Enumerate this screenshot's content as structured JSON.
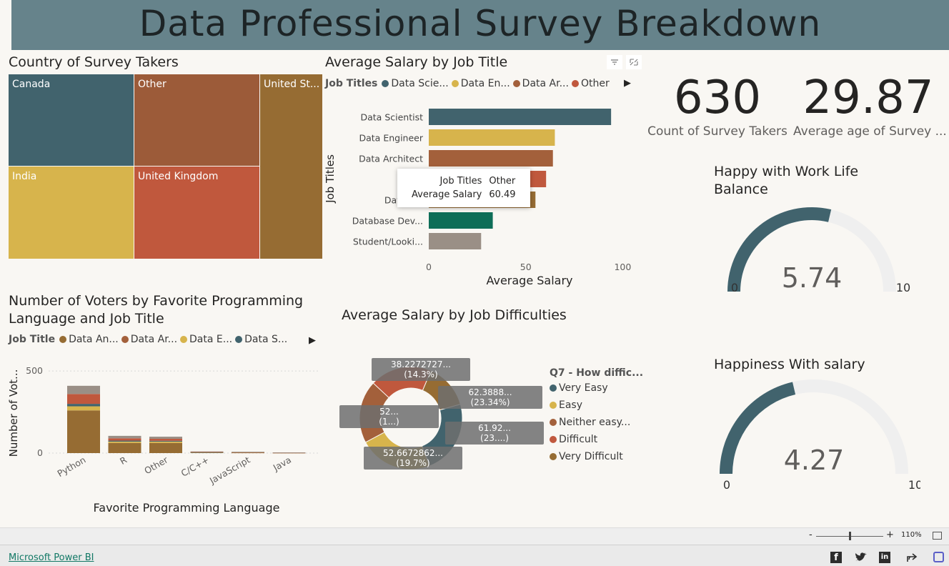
{
  "header": {
    "title": "Data Professional Survey Breakdown"
  },
  "treemap": {
    "title": "Country of Survey Takers",
    "cells": [
      {
        "label": "Canada",
        "color": "#41636d"
      },
      {
        "label": "Other",
        "color": "#9c5b39"
      },
      {
        "label": "United St...",
        "color": "#966c33"
      },
      {
        "label": "India",
        "color": "#d7b44c"
      },
      {
        "label": "United Kingdom",
        "color": "#c0583d"
      }
    ]
  },
  "salary_by_title": {
    "title": "Average Salary by Job Title",
    "legend_title": "Job Titles",
    "legend_items": [
      {
        "label": "Data Scie...",
        "color": "#41636d"
      },
      {
        "label": "Data En...",
        "color": "#d7b44c"
      },
      {
        "label": "Data Ar...",
        "color": "#a3603b"
      },
      {
        "label": "Other",
        "color": "#c0583d"
      }
    ],
    "y_axis_title": "Job Titles",
    "x_axis_title": "Average Salary",
    "tooltip": {
      "k1": "Job Titles",
      "v1": "Other",
      "k2": "Average Salary",
      "v2": "60.49"
    },
    "chart_data": {
      "type": "bar",
      "categories": [
        "Data Scientist",
        "Data Engineer",
        "Data Architect",
        "Other",
        "Data A...",
        "Database Dev...",
        "Student/Looki..."
      ],
      "values": [
        94,
        65,
        64,
        60.49,
        55,
        33,
        27
      ],
      "colors": [
        "#41636d",
        "#d7b44c",
        "#a3603b",
        "#c0583d",
        "#966c33",
        "#0e6e58",
        "#9a8f86"
      ],
      "xticks": [
        0,
        50,
        100
      ],
      "xlim": [
        0,
        105
      ]
    }
  },
  "lang_chart": {
    "title_line1": "Number of Voters by Favorite Programming",
    "title_line2": "Language and Job Title",
    "legend_title": "Job Title",
    "legend_items": [
      {
        "label": "Data An...",
        "color": "#966c33"
      },
      {
        "label": "Data Ar...",
        "color": "#a3603b"
      },
      {
        "label": "Data E...",
        "color": "#d7b44c"
      },
      {
        "label": "Data S...",
        "color": "#41636d"
      }
    ],
    "y_axis_title": "Number of Vot...",
    "x_axis_title": "Favorite Programming Language",
    "chart_data": {
      "type": "bar",
      "stacked": true,
      "categories": [
        "Python",
        "R",
        "Other",
        "C/C++",
        "JavaScript",
        "Java"
      ],
      "yticks": [
        0,
        500
      ],
      "ylim": [
        0,
        540
      ],
      "series": [
        {
          "color": "#966c33",
          "values": [
            260,
            62,
            62,
            4,
            3,
            2
          ]
        },
        {
          "color": "#d7b44c",
          "values": [
            25,
            8,
            8,
            1,
            1,
            0
          ]
        },
        {
          "color": "#41636d",
          "values": [
            15,
            6,
            5,
            1,
            1,
            0
          ]
        },
        {
          "color": "#c0583d",
          "values": [
            60,
            14,
            12,
            2,
            1,
            1
          ]
        },
        {
          "color": "#9a8f86",
          "values": [
            50,
            15,
            13,
            2,
            2,
            1
          ]
        }
      ]
    }
  },
  "donut": {
    "title": "Average Salary by Job Difficulties",
    "legend_title": "Q7 - How diffic...",
    "legend_items": [
      {
        "label": "Very Easy",
        "color": "#41636d"
      },
      {
        "label": "Easy",
        "color": "#d7b44c"
      },
      {
        "label": "Neither easy...",
        "color": "#a3603b"
      },
      {
        "label": "Difficult",
        "color": "#c0583d"
      },
      {
        "label": "Very Difficult",
        "color": "#966c33"
      }
    ],
    "labels": [
      {
        "l1": "38.2272727...",
        "l2": "(14.3%)"
      },
      {
        "l1": "62.3888...",
        "l2": "(23.34%)"
      },
      {
        "l1": "52...",
        "l2": "(1...)"
      },
      {
        "l1": "61.92...",
        "l2": "(23....)"
      },
      {
        "l1": "52.6672862...",
        "l2": "(19.7%)"
      }
    ],
    "chart_data": {
      "type": "pie",
      "categories": [
        "Very Easy",
        "Easy",
        "Neither easy...",
        "Difficult",
        "Very Difficult"
      ],
      "values": [
        62.39,
        61.92,
        52.67,
        52.0,
        38.23
      ],
      "percent": [
        23.34,
        23.0,
        19.7,
        19.66,
        14.3
      ],
      "colors": [
        "#41636d",
        "#d7b44c",
        "#a3603b",
        "#c0583d",
        "#966c33"
      ]
    }
  },
  "kpis": [
    {
      "value": "630",
      "label": "Count of Survey Takers"
    },
    {
      "value": "29.87",
      "label": "Average age of Survey ..."
    }
  ],
  "gauges": [
    {
      "title_line1": "Happy with Work Life",
      "title_line2": "Balance",
      "value": 5.74,
      "value_text": "5.74",
      "min": "0",
      "max": "10",
      "color": "#41636d",
      "track": "#efefef"
    },
    {
      "title_line1": "Happiness With salary",
      "title_line2": "",
      "value": 4.27,
      "value_text": "4.27",
      "min": "0",
      "max": "10",
      "color": "#41636d",
      "track": "#efefef"
    }
  ],
  "status_bar": {
    "zoom": "110%",
    "minus": "-",
    "plus": "+"
  },
  "footer": {
    "link": "Microsoft Power BI"
  }
}
